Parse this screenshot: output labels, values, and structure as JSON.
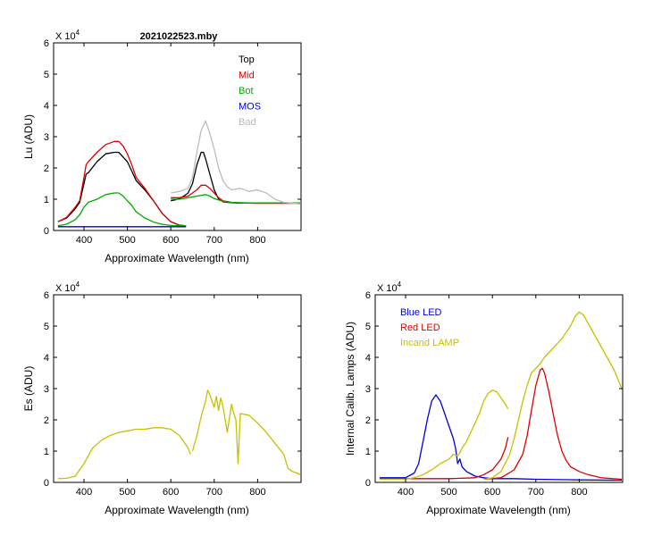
{
  "figure_title": "2021022523.mby",
  "chart_data": [
    {
      "id": "lu",
      "type": "line",
      "title": "2021022523.mby",
      "exponent_label": "X 10",
      "exponent_power": "4",
      "xlabel": "Approximate Wavelength (nm)",
      "ylabel": "Lu (ADU)",
      "xlim": [
        330,
        900
      ],
      "ylim": [
        0,
        6
      ],
      "xticks": [
        400,
        500,
        600,
        700,
        800
      ],
      "yticks": [
        0,
        1,
        2,
        3,
        4,
        5,
        6
      ],
      "legend_position": "top-right",
      "series": [
        {
          "name": "Top",
          "color": "#000000",
          "segments": [
            {
              "x": [
                340,
                360,
                380,
                390,
                400,
                405,
                410,
                430,
                450,
                470,
                480,
                490,
                500,
                510,
                520,
                540,
                560,
                580,
                600,
                620,
                635
              ],
              "y": [
                0.28,
                0.4,
                0.7,
                0.9,
                1.5,
                1.8,
                1.85,
                2.2,
                2.45,
                2.5,
                2.5,
                2.35,
                2.2,
                1.9,
                1.6,
                1.3,
                0.95,
                0.55,
                0.28,
                0.17,
                0.15
              ]
            },
            {
              "x": [
                600,
                610,
                620,
                630,
                640,
                650,
                660,
                670,
                675,
                680,
                690,
                700,
                710,
                720,
                730,
                750,
                780,
                820,
                860,
                898
              ],
              "y": [
                0.95,
                0.98,
                1.02,
                1.1,
                1.2,
                1.5,
                2.1,
                2.5,
                2.5,
                2.3,
                1.8,
                1.3,
                1.0,
                0.92,
                0.9,
                0.88,
                0.88,
                0.88,
                0.88,
                0.88
              ]
            }
          ]
        },
        {
          "name": "Mid",
          "color": "#dd0000",
          "segments": [
            {
              "x": [
                340,
                360,
                380,
                390,
                400,
                405,
                410,
                430,
                450,
                470,
                480,
                490,
                500,
                510,
                520,
                540,
                560,
                580,
                600,
                620,
                635
              ],
              "y": [
                0.28,
                0.42,
                0.75,
                0.95,
                1.7,
                2.1,
                2.2,
                2.5,
                2.75,
                2.85,
                2.85,
                2.7,
                2.45,
                2.1,
                1.7,
                1.35,
                0.95,
                0.55,
                0.28,
                0.17,
                0.15
              ]
            },
            {
              "x": [
                600,
                620,
                640,
                650,
                660,
                670,
                680,
                690,
                700,
                710,
                720,
                740,
                760,
                800,
                860,
                898
              ],
              "y": [
                1.05,
                1.05,
                1.1,
                1.2,
                1.3,
                1.45,
                1.45,
                1.35,
                1.2,
                1.05,
                0.95,
                0.9,
                0.88,
                0.87,
                0.87,
                0.87
              ]
            }
          ]
        },
        {
          "name": "Bot",
          "color": "#00aa00",
          "segments": [
            {
              "x": [
                340,
                360,
                380,
                390,
                400,
                410,
                430,
                450,
                470,
                480,
                490,
                500,
                510,
                520,
                540,
                560,
                580,
                600,
                620,
                635
              ],
              "y": [
                0.15,
                0.2,
                0.35,
                0.5,
                0.75,
                0.9,
                1.0,
                1.15,
                1.2,
                1.2,
                1.1,
                0.95,
                0.8,
                0.6,
                0.4,
                0.27,
                0.2,
                0.16,
                0.15,
                0.15
              ]
            },
            {
              "x": [
                600,
                620,
                640,
                660,
                680,
                690,
                700,
                720,
                740,
                780,
                860,
                898
              ],
              "y": [
                1.0,
                1.0,
                1.05,
                1.1,
                1.15,
                1.1,
                1.02,
                0.93,
                0.9,
                0.88,
                0.88,
                0.88
              ]
            }
          ]
        },
        {
          "name": "MOS",
          "color": "#0000dd",
          "segments": [
            {
              "x": [
                340,
                635
              ],
              "y": [
                0.12,
                0.12
              ]
            }
          ]
        },
        {
          "name": "Bad",
          "color": "#bbbbbb",
          "segments": [
            {
              "x": [
                600,
                620,
                640,
                650,
                660,
                670,
                680,
                690,
                700,
                710,
                720,
                730,
                740,
                760,
                780,
                800,
                820,
                840,
                860,
                898
              ],
              "y": [
                1.2,
                1.25,
                1.35,
                1.7,
                2.5,
                3.2,
                3.5,
                3.1,
                2.6,
                2.0,
                1.6,
                1.4,
                1.3,
                1.35,
                1.25,
                1.3,
                1.2,
                1.0,
                0.9,
                0.85
              ]
            }
          ]
        }
      ]
    },
    {
      "id": "es",
      "type": "line",
      "exponent_label": "X 10",
      "exponent_power": "4",
      "xlabel": "Approximate Wavelength (nm)",
      "ylabel": "Es  (ADU)",
      "xlim": [
        330,
        900
      ],
      "ylim": [
        0,
        6
      ],
      "xticks": [
        400,
        500,
        600,
        700,
        800
      ],
      "yticks": [
        0,
        1,
        2,
        3,
        4,
        5,
        6
      ],
      "series": [
        {
          "name": "Es",
          "color": "#c8c000",
          "segments": [
            {
              "x": [
                340,
                360,
                380,
                400,
                420,
                440,
                460,
                480,
                500,
                520,
                540,
                560,
                580,
                600,
                620,
                640,
                645
              ],
              "y": [
                0.12,
                0.13,
                0.2,
                0.6,
                1.1,
                1.35,
                1.5,
                1.6,
                1.65,
                1.7,
                1.7,
                1.75,
                1.75,
                1.7,
                1.5,
                1.1,
                0.9
              ]
            },
            {
              "x": [
                650,
                660,
                670,
                680,
                685,
                690,
                700,
                705,
                710,
                715,
                720,
                730,
                740,
                745,
                750,
                755,
                760,
                780,
                800,
                820,
                840,
                860,
                870,
                880,
                890,
                898
              ],
              "y": [
                1.0,
                1.5,
                2.1,
                2.6,
                2.95,
                2.8,
                2.4,
                2.75,
                2.3,
                2.7,
                2.45,
                1.6,
                2.5,
                2.2,
                2.0,
                0.6,
                2.2,
                2.15,
                1.9,
                1.6,
                1.25,
                0.9,
                0.45,
                0.35,
                0.3,
                0.25
              ]
            }
          ]
        }
      ]
    },
    {
      "id": "lamps",
      "type": "line",
      "exponent_label": "X 10",
      "exponent_power": "4",
      "xlabel": "Approximate Wavelength (nm)",
      "ylabel": "Internal Calib. Lamps  (ADU)",
      "xlim": [
        330,
        900
      ],
      "ylim": [
        0,
        6
      ],
      "xticks": [
        400,
        500,
        600,
        700,
        800
      ],
      "yticks": [
        0,
        1,
        2,
        3,
        4,
        5,
        6
      ],
      "legend_position": "top-left",
      "series": [
        {
          "name": "Blue LED",
          "color": "#0000dd",
          "segments": [
            {
              "x": [
                340,
                400,
                420,
                430,
                440,
                450,
                460,
                470,
                480,
                490,
                500,
                510,
                515,
                520,
                525,
                530,
                540,
                560,
                580,
                600,
                650,
                700,
                800,
                898
              ],
              "y": [
                0.15,
                0.15,
                0.3,
                0.6,
                1.3,
                2.0,
                2.6,
                2.8,
                2.6,
                2.2,
                1.8,
                1.4,
                1.1,
                0.6,
                0.75,
                0.5,
                0.35,
                0.2,
                0.15,
                0.12,
                0.12,
                0.1,
                0.08,
                0.07
              ]
            }
          ]
        },
        {
          "name": "Red LED",
          "color": "#dd0000",
          "segments": [
            {
              "x": [
                340,
                500,
                560,
                580,
                600,
                620,
                630,
                636
              ],
              "y": [
                0.12,
                0.12,
                0.15,
                0.25,
                0.4,
                0.75,
                1.1,
                1.45
              ]
            },
            {
              "x": [
                580,
                620,
                650,
                670,
                680,
                690,
                700,
                710,
                715,
                720,
                730,
                740,
                750,
                760,
                770,
                780,
                800,
                820,
                850,
                898
              ],
              "y": [
                0.1,
                0.15,
                0.4,
                0.9,
                1.5,
                2.3,
                3.1,
                3.6,
                3.65,
                3.5,
                2.9,
                2.2,
                1.5,
                1.0,
                0.7,
                0.5,
                0.35,
                0.25,
                0.15,
                0.1
              ]
            }
          ]
        },
        {
          "name": "Incand LAMP",
          "color": "#c8c000",
          "segments": [
            {
              "x": [
                340,
                400,
                420,
                440,
                460,
                480,
                500,
                510,
                520,
                525,
                530,
                540,
                550,
                560,
                570,
                580,
                590,
                600,
                610,
                620,
                630,
                636
              ],
              "y": [
                0.1,
                0.1,
                0.15,
                0.25,
                0.4,
                0.6,
                0.75,
                0.9,
                0.85,
                0.95,
                1.1,
                1.3,
                1.6,
                1.9,
                2.2,
                2.6,
                2.85,
                2.95,
                2.9,
                2.7,
                2.5,
                2.35
              ]
            },
            {
              "x": [
                580,
                600,
                620,
                640,
                650,
                660,
                670,
                680,
                690,
                700,
                710,
                720,
                740,
                760,
                780,
                790,
                800,
                810,
                820,
                840,
                860,
                880,
                898
              ],
              "y": [
                0.1,
                0.15,
                0.35,
                0.9,
                1.4,
                2.0,
                2.6,
                3.1,
                3.5,
                3.65,
                3.8,
                4.0,
                4.3,
                4.6,
                5.0,
                5.3,
                5.45,
                5.35,
                5.1,
                4.6,
                4.1,
                3.6,
                3.0
              ]
            }
          ]
        }
      ]
    }
  ]
}
